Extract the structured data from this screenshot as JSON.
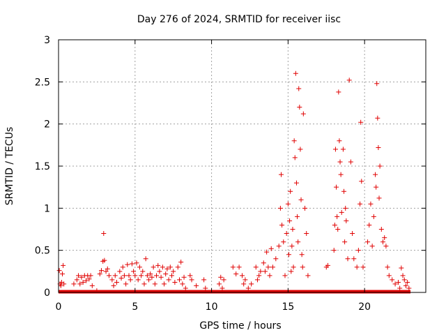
{
  "chart_data": {
    "type": "scatter",
    "title": "Day 276 of 2024, SRMTID for receiver iisc",
    "xlabel": "GPS time / hours",
    "ylabel": "SRMTID / TECUs",
    "xlim": [
      0,
      24
    ],
    "ylim": [
      0,
      3
    ],
    "x_ticks": [
      0,
      5,
      10,
      15,
      20
    ],
    "x_tick_labels": [
      "0",
      "5",
      "10",
      "15",
      "20"
    ],
    "y_ticks": [
      0,
      0.5,
      1,
      1.5,
      2,
      2.5,
      3
    ],
    "y_tick_labels": [
      "0",
      "0.5",
      "1",
      "1.5",
      "2",
      "2.5",
      "3"
    ],
    "grid": true,
    "legend": "none",
    "marker": "+",
    "color": "#e00000",
    "baseline": {
      "x_start": 0,
      "x_end": 23,
      "y": 0
    },
    "series": [
      {
        "name": "SRMTID",
        "points": [
          [
            0.05,
            0.26
          ],
          [
            0.1,
            0.1
          ],
          [
            0.15,
            0.08
          ],
          [
            0.2,
            0.12
          ],
          [
            0.25,
            0.22
          ],
          [
            0.3,
            0.32
          ],
          [
            0.35,
            0.1
          ],
          [
            1.0,
            0.1
          ],
          [
            1.2,
            0.15
          ],
          [
            1.3,
            0.2
          ],
          [
            1.4,
            0.1
          ],
          [
            1.5,
            0.18
          ],
          [
            1.6,
            0.12
          ],
          [
            1.7,
            0.2
          ],
          [
            1.8,
            0.14
          ],
          [
            1.9,
            0.2
          ],
          [
            2.0,
            0.16
          ],
          [
            2.1,
            0.2
          ],
          [
            2.2,
            0.08
          ],
          [
            2.5,
            0.02
          ],
          [
            2.7,
            0.22
          ],
          [
            2.8,
            0.26
          ],
          [
            2.9,
            0.37
          ],
          [
            2.95,
            0.7
          ],
          [
            3.0,
            0.38
          ],
          [
            3.1,
            0.25
          ],
          [
            3.2,
            0.28
          ],
          [
            3.3,
            0.2
          ],
          [
            3.5,
            0.15
          ],
          [
            3.6,
            0.08
          ],
          [
            3.7,
            0.2
          ],
          [
            3.8,
            0.12
          ],
          [
            4.0,
            0.25
          ],
          [
            4.1,
            0.17
          ],
          [
            4.2,
            0.3
          ],
          [
            4.3,
            0.2
          ],
          [
            4.4,
            0.1
          ],
          [
            4.5,
            0.33
          ],
          [
            4.6,
            0.2
          ],
          [
            4.7,
            0.15
          ],
          [
            4.8,
            0.34
          ],
          [
            4.9,
            0.25
          ],
          [
            5.0,
            0.2
          ],
          [
            5.1,
            0.35
          ],
          [
            5.2,
            0.15
          ],
          [
            5.3,
            0.3
          ],
          [
            5.4,
            0.2
          ],
          [
            5.5,
            0.25
          ],
          [
            5.6,
            0.1
          ],
          [
            5.7,
            0.4
          ],
          [
            5.8,
            0.2
          ],
          [
            5.9,
            0.15
          ],
          [
            6.0,
            0.22
          ],
          [
            6.1,
            0.18
          ],
          [
            6.2,
            0.3
          ],
          [
            6.3,
            0.1
          ],
          [
            6.4,
            0.2
          ],
          [
            6.5,
            0.32
          ],
          [
            6.6,
            0.25
          ],
          [
            6.7,
            0.18
          ],
          [
            6.8,
            0.3
          ],
          [
            6.9,
            0.1
          ],
          [
            7.0,
            0.22
          ],
          [
            7.1,
            0.28
          ],
          [
            7.2,
            0.15
          ],
          [
            7.3,
            0.3
          ],
          [
            7.4,
            0.2
          ],
          [
            7.5,
            0.25
          ],
          [
            7.6,
            0.12
          ],
          [
            7.8,
            0.3
          ],
          [
            7.9,
            0.15
          ],
          [
            8.0,
            0.36
          ],
          [
            8.1,
            0.1
          ],
          [
            8.2,
            0.18
          ],
          [
            8.3,
            0.05
          ],
          [
            8.6,
            0.2
          ],
          [
            8.7,
            0.15
          ],
          [
            9.0,
            0.08
          ],
          [
            9.5,
            0.15
          ],
          [
            9.6,
            0.05
          ],
          [
            10.5,
            0.1
          ],
          [
            10.6,
            0.18
          ],
          [
            10.7,
            0.05
          ],
          [
            10.8,
            0.15
          ],
          [
            11.4,
            0.3
          ],
          [
            11.6,
            0.22
          ],
          [
            11.8,
            0.3
          ],
          [
            12.0,
            0.2
          ],
          [
            12.1,
            0.1
          ],
          [
            12.2,
            0.15
          ],
          [
            12.4,
            0.05
          ],
          [
            12.6,
            0.1
          ],
          [
            12.9,
            0.3
          ],
          [
            13.0,
            0.15
          ],
          [
            13.1,
            0.2
          ],
          [
            13.2,
            0.25
          ],
          [
            13.4,
            0.35
          ],
          [
            13.5,
            0.25
          ],
          [
            13.6,
            0.48
          ],
          [
            13.7,
            0.3
          ],
          [
            13.8,
            0.2
          ],
          [
            13.9,
            0.52
          ],
          [
            14.0,
            0.3
          ],
          [
            14.2,
            0.4
          ],
          [
            14.4,
            0.55
          ],
          [
            14.5,
            1.0
          ],
          [
            14.55,
            1.4
          ],
          [
            14.6,
            0.8
          ],
          [
            14.7,
            0.6
          ],
          [
            14.8,
            0.2
          ],
          [
            14.9,
            0.7
          ],
          [
            15.0,
            1.05
          ],
          [
            15.05,
            0.45
          ],
          [
            15.1,
            0.85
          ],
          [
            15.15,
            1.2
          ],
          [
            15.2,
            0.25
          ],
          [
            15.25,
            0.55
          ],
          [
            15.3,
            0.75
          ],
          [
            15.35,
            0.3
          ],
          [
            15.4,
            1.8
          ],
          [
            15.45,
            1.6
          ],
          [
            15.5,
            2.6
          ],
          [
            15.55,
            1.3
          ],
          [
            15.6,
            0.9
          ],
          [
            15.65,
            0.6
          ],
          [
            15.7,
            2.42
          ],
          [
            15.75,
            2.2
          ],
          [
            15.8,
            1.7
          ],
          [
            15.85,
            1.1
          ],
          [
            15.9,
            0.45
          ],
          [
            15.95,
            0.3
          ],
          [
            16.0,
            2.12
          ],
          [
            16.1,
            1.0
          ],
          [
            16.2,
            0.7
          ],
          [
            16.3,
            0.2
          ],
          [
            17.5,
            0.3
          ],
          [
            17.6,
            0.32
          ],
          [
            18.0,
            0.5
          ],
          [
            18.05,
            0.8
          ],
          [
            18.1,
            1.7
          ],
          [
            18.15,
            1.25
          ],
          [
            18.2,
            0.9
          ],
          [
            18.25,
            0.75
          ],
          [
            18.3,
            2.38
          ],
          [
            18.35,
            1.8
          ],
          [
            18.4,
            1.55
          ],
          [
            18.45,
            1.4
          ],
          [
            18.5,
            0.95
          ],
          [
            18.6,
            1.7
          ],
          [
            18.65,
            1.2
          ],
          [
            18.7,
            0.6
          ],
          [
            18.75,
            1.0
          ],
          [
            18.8,
            0.85
          ],
          [
            18.9,
            0.4
          ],
          [
            19.0,
            2.52
          ],
          [
            19.1,
            1.55
          ],
          [
            19.2,
            0.7
          ],
          [
            19.3,
            0.4
          ],
          [
            19.5,
            0.3
          ],
          [
            19.6,
            0.5
          ],
          [
            19.7,
            1.05
          ],
          [
            19.75,
            2.02
          ],
          [
            19.8,
            1.32
          ],
          [
            19.9,
            0.3
          ],
          [
            20.2,
            0.6
          ],
          [
            20.3,
            0.8
          ],
          [
            20.4,
            1.05
          ],
          [
            20.5,
            0.55
          ],
          [
            20.6,
            0.9
          ],
          [
            20.7,
            1.4
          ],
          [
            20.75,
            1.25
          ],
          [
            20.8,
            2.48
          ],
          [
            20.85,
            2.07
          ],
          [
            20.9,
            1.72
          ],
          [
            20.95,
            1.12
          ],
          [
            21.0,
            1.5
          ],
          [
            21.1,
            0.75
          ],
          [
            21.2,
            0.6
          ],
          [
            21.3,
            0.65
          ],
          [
            21.4,
            0.55
          ],
          [
            21.5,
            0.3
          ],
          [
            21.6,
            0.2
          ],
          [
            21.8,
            0.15
          ],
          [
            22.0,
            0.1
          ],
          [
            22.2,
            0.12
          ],
          [
            22.3,
            0.05
          ],
          [
            22.4,
            0.29
          ],
          [
            22.5,
            0.2
          ],
          [
            22.6,
            0.15
          ],
          [
            22.7,
            0.08
          ],
          [
            22.8,
            0.12
          ],
          [
            22.9,
            0.05
          ]
        ]
      }
    ]
  }
}
